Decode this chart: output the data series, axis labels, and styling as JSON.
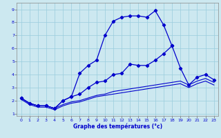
{
  "xlabel": "Graphe des températures (°c)",
  "bg_color": "#cce8f0",
  "line_color": "#0000cc",
  "grid_color": "#99ccdd",
  "xlim": [
    -0.5,
    23.5
  ],
  "ylim": [
    0.8,
    9.5
  ],
  "xticks": [
    0,
    1,
    2,
    3,
    4,
    5,
    6,
    7,
    8,
    9,
    10,
    11,
    12,
    13,
    14,
    15,
    16,
    17,
    18,
    19,
    20,
    21,
    22,
    23
  ],
  "yticks": [
    1,
    2,
    3,
    4,
    5,
    6,
    7,
    8,
    9
  ],
  "series": [
    {
      "x": [
        0,
        1,
        2,
        3,
        4,
        5,
        6,
        7,
        8,
        9,
        10,
        11,
        12,
        13,
        14,
        15,
        16,
        17,
        18,
        19,
        20,
        21,
        22,
        23
      ],
      "y": [
        2.2,
        1.8,
        1.6,
        1.6,
        1.4,
        2.0,
        2.3,
        4.1,
        4.7,
        5.1,
        7.0,
        8.1,
        8.4,
        8.5,
        8.5,
        8.4,
        8.9,
        7.8,
        6.2,
        null,
        null,
        null,
        null,
        null
      ],
      "marker": "D",
      "markersize": 2.2,
      "linewidth": 0.9
    },
    {
      "x": [
        0,
        1,
        2,
        3,
        4,
        5,
        6,
        7,
        8,
        9,
        10,
        11,
        12,
        13,
        14,
        15,
        16,
        17,
        18,
        19,
        20,
        21,
        22,
        23
      ],
      "y": [
        2.2,
        1.8,
        1.6,
        1.6,
        1.4,
        2.0,
        2.3,
        2.5,
        3.0,
        3.4,
        3.5,
        4.0,
        4.1,
        4.8,
        4.7,
        4.7,
        5.1,
        5.6,
        6.2,
        4.5,
        3.2,
        3.8,
        4.0,
        3.6
      ],
      "marker": "D",
      "markersize": 2.2,
      "linewidth": 0.9
    },
    {
      "x": [
        0,
        1,
        2,
        3,
        4,
        5,
        6,
        7,
        8,
        9,
        10,
        11,
        12,
        13,
        14,
        15,
        16,
        17,
        18,
        19,
        20,
        21,
        22,
        23
      ],
      "y": [
        2.2,
        1.8,
        1.6,
        1.6,
        1.4,
        1.7,
        1.9,
        2.0,
        2.2,
        2.4,
        2.5,
        2.7,
        2.8,
        2.9,
        3.0,
        3.1,
        3.2,
        3.3,
        3.4,
        3.5,
        3.2,
        3.5,
        3.7,
        3.4
      ],
      "marker": null,
      "markersize": 0,
      "linewidth": 0.8
    },
    {
      "x": [
        0,
        1,
        2,
        3,
        4,
        5,
        6,
        7,
        8,
        9,
        10,
        11,
        12,
        13,
        14,
        15,
        16,
        17,
        18,
        19,
        20,
        21,
        22,
        23
      ],
      "y": [
        2.1,
        1.7,
        1.5,
        1.5,
        1.3,
        1.6,
        1.8,
        1.9,
        2.1,
        2.3,
        2.4,
        2.5,
        2.6,
        2.7,
        2.8,
        2.9,
        3.0,
        3.1,
        3.2,
        3.3,
        3.0,
        3.3,
        3.5,
        3.2
      ],
      "marker": null,
      "markersize": 0,
      "linewidth": 0.8
    }
  ]
}
